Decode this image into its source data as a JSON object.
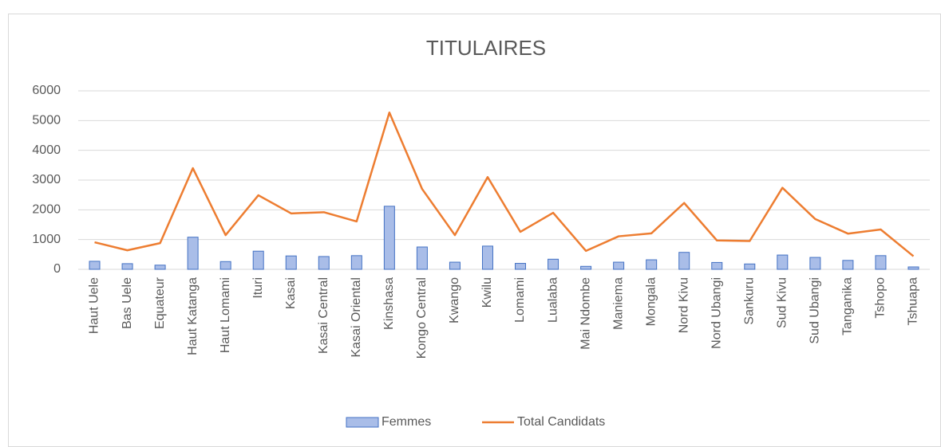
{
  "chart_data": {
    "type": "bar_line",
    "title": "TITULAIRES",
    "categories": [
      "Haut Uele",
      "Bas Uele",
      "Equateur",
      "Haut Katanga",
      "Haut Lomami",
      "Ituri",
      "Kasai",
      "Kasai Central",
      "Kasai Oriental",
      "Kinshasa",
      "Kongo Central",
      "Kwango",
      "Kwilu",
      "Lomami",
      "Lualaba",
      "Mai Ndombe",
      "Maniema",
      "Mongala",
      "Nord Kivu",
      "Nord Ubangi",
      "Sankuru",
      "Sud Kivu",
      "Sud Ubangi",
      "Tanganika",
      "Tshopo",
      "Tshuapa"
    ],
    "series": [
      {
        "name": "Femmes",
        "type": "bar",
        "color": "#a9bde8",
        "stroke": "#4472c4",
        "values": [
          270,
          190,
          140,
          1080,
          260,
          610,
          450,
          430,
          460,
          2120,
          750,
          240,
          780,
          200,
          340,
          100,
          240,
          320,
          570,
          230,
          180,
          480,
          400,
          300,
          460,
          80
        ]
      },
      {
        "name": "Total Candidats",
        "type": "line",
        "color": "#ed7d31",
        "values": [
          910,
          640,
          880,
          3400,
          1150,
          2490,
          1880,
          1920,
          1610,
          5270,
          2700,
          1150,
          3100,
          1260,
          1900,
          620,
          1110,
          1210,
          2230,
          970,
          950,
          2740,
          1690,
          1200,
          1340,
          440
        ]
      }
    ],
    "ylim": [
      0,
      6000
    ],
    "yticks": [
      0,
      1000,
      2000,
      3000,
      4000,
      5000,
      6000
    ],
    "grid": true,
    "legend": "bottom"
  }
}
